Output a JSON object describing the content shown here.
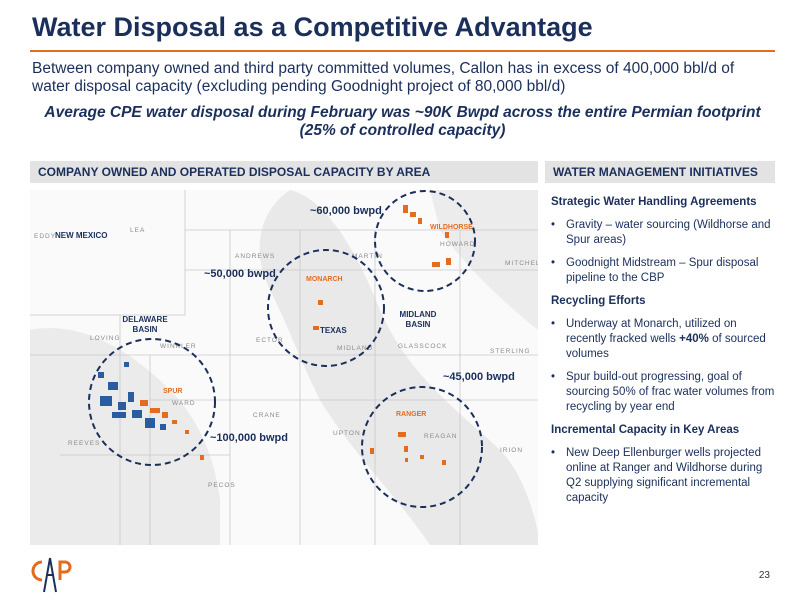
{
  "header": {
    "title": "Water Disposal as a Competitive Advantage"
  },
  "intro": "Between company owned and third party committed volumes, Callon has in excess of 400,000 bbl/d of water disposal capacity (excluding pending Goodnight project of 80,000 bbl/d)",
  "highlight": "Average CPE water disposal during February was ~90K Bwpd across the entire Permian footprint (25% of controlled capacity)",
  "map_panel": {
    "heading": "COMPANY OWNED AND OPERATED DISPOSAL CAPACITY BY AREA",
    "capacity_labels": [
      "~60,000 bwpd",
      "~50,000 bwpd",
      "~45,000 bwpd",
      "~100,000 bwpd"
    ],
    "asset_labels": [
      "WILDHORSE",
      "MONARCH",
      "SPUR",
      "RANGER"
    ],
    "basin_labels": [
      [
        "DELAWARE",
        "BASIN"
      ],
      [
        "MIDLAND",
        "BASIN"
      ]
    ],
    "state_labels": [
      "NEW MEXICO",
      "TEXAS"
    ]
  },
  "initiatives": {
    "heading": "WATER MANAGEMENT INITIATIVES",
    "sections": [
      {
        "title": "Strategic Water Handling Agreements",
        "bullets": [
          "Gravity – water sourcing (Wildhorse and Spur areas)",
          "Goodnight Midstream – Spur disposal pipeline to the CBP"
        ]
      },
      {
        "title": "Recycling Efforts",
        "bullets": [
          [
            "Underway at Monarch, utilized on recently fracked wells",
            "+40%",
            "of sourced volumes"
          ],
          "Spur build-out progressing, goal of sourcing 50% of frac water volumes from recycling by year end"
        ]
      },
      {
        "title": "Incremental Capacity in Key Areas",
        "bullets": [
          "New Deep Ellenburger wells projected online at Ranger and Wildhorse during Q2 supplying significant incremental capacity"
        ]
      }
    ]
  },
  "page_number": "23"
}
